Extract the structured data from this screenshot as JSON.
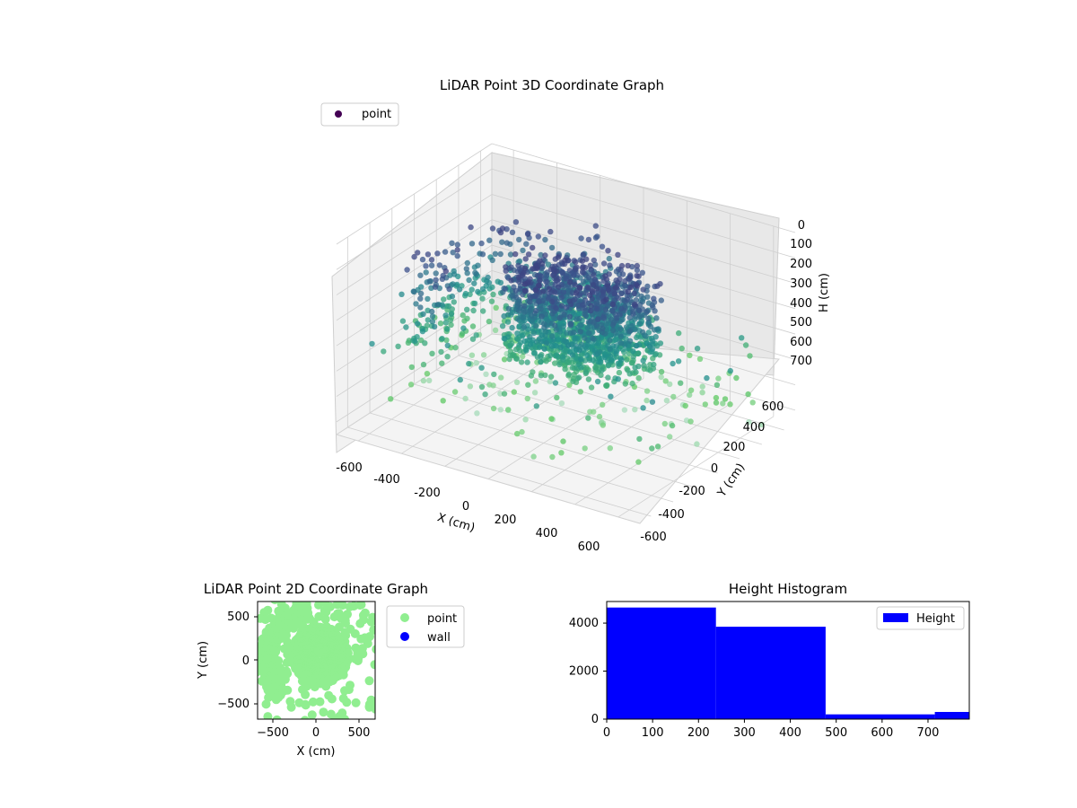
{
  "chart_data": [
    {
      "type": "scatter",
      "projection": "3d",
      "title": "LiDAR Point 3D Coordinate Graph",
      "xlabel": "X (cm)",
      "ylabel": "Y (cm)",
      "zlabel": "H (cm)",
      "xlim": [
        -700,
        700
      ],
      "ylim": [
        -700,
        700
      ],
      "zlim": [
        0,
        750
      ],
      "z_inverted": true,
      "xticks": [
        "-600",
        "-400",
        "-200",
        "0",
        "200",
        "400",
        "600"
      ],
      "yticks": [
        "-600",
        "-400",
        "-200",
        "0",
        "200",
        "400",
        "600"
      ],
      "zticks": [
        "0",
        "100",
        "200",
        "300",
        "400",
        "500",
        "600",
        "700"
      ],
      "grid": true,
      "legend": {
        "entries": [
          "point"
        ],
        "placement": "upper-left"
      },
      "colormap": "viridis (colored by H)",
      "marker_color": "#440154",
      "series": [
        {
          "name": "point",
          "description": "dense ring of points around the sensor (radius ~80–330 cm, H ~150–480 cm) plus sparse points near the walls and a grid of high points (H ~600–750 cm)"
        }
      ]
    },
    {
      "type": "scatter",
      "title": "LiDAR Point 2D Coordinate Graph",
      "xlabel": "X (cm)",
      "ylabel": "Y (cm)",
      "xlim": [
        -680,
        680
      ],
      "ylim": [
        -680,
        680
      ],
      "xticks": [
        "−500",
        "0",
        "500"
      ],
      "yticks": [
        "500",
        "0",
        "−500"
      ],
      "legend": {
        "entries": [
          "point",
          "wall"
        ],
        "placement": "outside-right"
      },
      "colors": {
        "point": "#90ee90",
        "wall": "#0000ff"
      },
      "series": [
        {
          "name": "point",
          "description": "top-down projection of the same LiDAR points; dense blob centered near (0, 0)"
        },
        {
          "name": "wall",
          "values": []
        }
      ]
    },
    {
      "type": "bar",
      "subtype": "histogram",
      "title": "Height Histogram",
      "xlim": [
        0,
        790
      ],
      "ylim": [
        0,
        4900
      ],
      "xticks": [
        "0",
        "100",
        "200",
        "300",
        "400",
        "500",
        "600",
        "700"
      ],
      "yticks": [
        "0",
        "2000",
        "4000"
      ],
      "legend": {
        "entries": [
          "Height"
        ],
        "placement": "upper-right"
      },
      "color": "#0000ff",
      "bins": [
        {
          "x0": 0,
          "x1": 238,
          "count": 4650
        },
        {
          "x0": 238,
          "x1": 477,
          "count": 3850
        },
        {
          "x0": 477,
          "x1": 715,
          "count": 200
        },
        {
          "x0": 715,
          "x1": 790,
          "count": 300
        }
      ]
    }
  ]
}
